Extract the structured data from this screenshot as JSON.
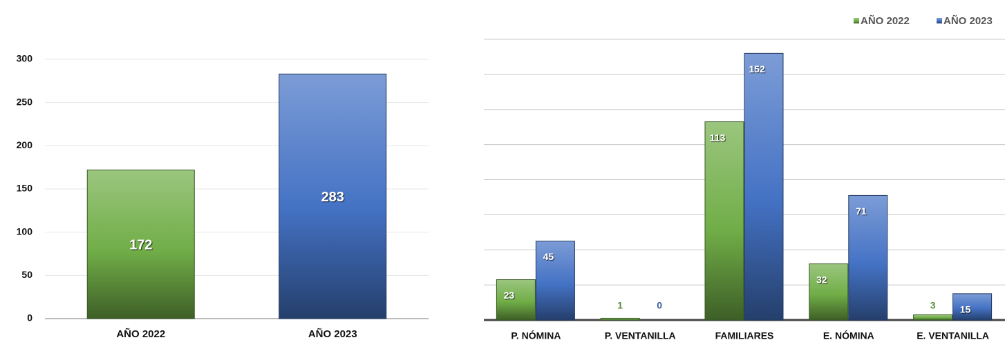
{
  "chart_data": [
    {
      "type": "bar",
      "categories": [
        "AÑO 2022",
        "AÑO 2023"
      ],
      "values": [
        172,
        283
      ],
      "colors": [
        "#70ad47",
        "#4472c4"
      ],
      "ylim": [
        0,
        300
      ],
      "yticks": [
        0,
        50,
        100,
        150,
        200,
        250,
        300
      ],
      "grid": true
    },
    {
      "type": "grouped_bar",
      "categories": [
        "P. NÓMINA",
        "P. VENTANILLA",
        "FAMILIARES",
        "E. NÓMINA",
        "E. VENTANILLA"
      ],
      "series": [
        {
          "name": "AÑO 2022",
          "color": "#70ad47",
          "values": [
            23,
            1,
            113,
            32,
            3
          ]
        },
        {
          "name": "AÑO 2023",
          "color": "#4472c4",
          "values": [
            45,
            0,
            152,
            71,
            15
          ]
        }
      ],
      "ylim": [
        0,
        160
      ],
      "yticks": [
        0,
        20,
        40,
        60,
        80,
        100,
        120,
        140,
        160
      ],
      "grid": true,
      "legend": "top-right"
    }
  ]
}
